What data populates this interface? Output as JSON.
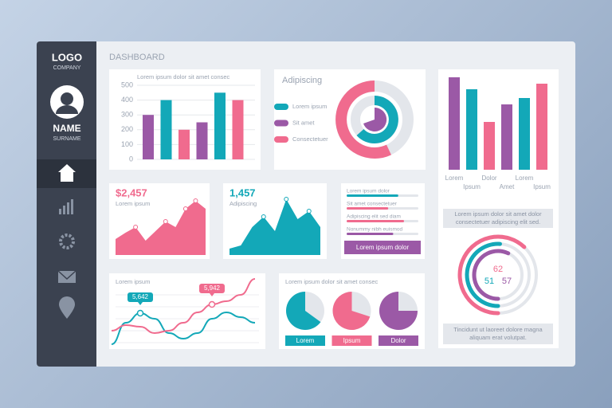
{
  "sidebar": {
    "logo": "LOGO",
    "company": "COMPANY",
    "name": "NAME",
    "surname": "SURNAME"
  },
  "header": {
    "title": "DASHBOARD"
  },
  "bar_panel": {
    "title": "Lorem ipsum dolor sit amet consec",
    "ylim": [
      0,
      500
    ],
    "yticks": [
      0,
      100,
      200,
      300,
      400,
      500
    ],
    "values": [
      300,
      400,
      200,
      250,
      450,
      400
    ],
    "colors": [
      "#9b59a6",
      "#13a8b8",
      "#f06b8e",
      "#9b59a6",
      "#13a8b8",
      "#f06b8e"
    ]
  },
  "donut_panel": {
    "title": "Adipiscing",
    "legend": [
      {
        "name": "Lorem ipsum",
        "color": "#13a8b8"
      },
      {
        "name": "Sit amet",
        "color": "#9b59a6"
      },
      {
        "name": "Consectetuer",
        "color": "#f06b8e"
      }
    ]
  },
  "column_panel": {
    "categories": [
      "Lorem",
      "Ipsum",
      "Dolor",
      "Amet",
      "Lorem",
      "Ipsum"
    ],
    "values": [
      116,
      101,
      60,
      82,
      90,
      108
    ],
    "colors": [
      "#9b59a6",
      "#13a8b8",
      "#f06b8e",
      "#9b59a6",
      "#13a8b8",
      "#f06b8e"
    ],
    "note": "Lorem ipsum dolor sit amet dolor consectetuer adipiscing elit sed."
  },
  "stat_1": {
    "value": "$2,457",
    "label": "Lorem ipsum",
    "color": "#f06b8e",
    "area": [
      20,
      28,
      35,
      18,
      30,
      42,
      35,
      58,
      68,
      58
    ]
  },
  "stat_2": {
    "value": "1,457",
    "label": "Adipiscing",
    "color": "#13a8b8",
    "area": [
      8,
      12,
      35,
      48,
      30,
      70,
      45,
      55,
      35
    ]
  },
  "progress_panel": {
    "items": [
      {
        "label": "Lorem ipsum dolor",
        "value": 72,
        "color": "#13a8b8"
      },
      {
        "label": "Sit amet consectetuer",
        "value": 58,
        "color": "#f06b8e"
      },
      {
        "label": "Adipiscing elit sed diam",
        "value": 80,
        "color": "#f06b8e"
      },
      {
        "label": "Nonummy nibh euismod",
        "value": 65,
        "color": "#9b59a6"
      }
    ],
    "button": "Lorem ipsum dolor"
  },
  "line_panel": {
    "title": "Lorem ipsum",
    "series": [
      {
        "color": "#13a8b8",
        "values": [
          4577,
          5314,
          5642,
          5451,
          4960,
          4768,
          4960,
          5451,
          5669,
          5505,
          5314
        ],
        "value_labels": [
          null,
          null,
          "5,642",
          null,
          null,
          null,
          null,
          null,
          null,
          null,
          null
        ]
      },
      {
        "color": "#f06b8e",
        "values": [
          5041,
          5232,
          5178,
          4960,
          5041,
          5314,
          5669,
          5942,
          6051,
          6270,
          6816
        ],
        "value_labels": [
          null,
          null,
          null,
          null,
          null,
          null,
          null,
          "5,942",
          null,
          null,
          null
        ]
      }
    ]
  },
  "pie_panel": {
    "title": "Lorem ipsum dolor sit amet consec",
    "pies": [
      {
        "label": "Lorem",
        "value": 65,
        "color": "#13a8b8"
      },
      {
        "label": "Ipsum",
        "value": 70,
        "color": "#f06b8e"
      },
      {
        "label": "Dolor",
        "value": 75,
        "color": "#9b59a6"
      }
    ]
  },
  "radial_panel": {
    "rings": [
      {
        "value": 62,
        "color": "#f06b8e"
      },
      {
        "value": 51,
        "color": "#13a8b8"
      },
      {
        "value": 57,
        "color": "#9b59a6"
      }
    ],
    "note": "Tincidunt ut laoreet dolore magna aliquam erat volutpat."
  }
}
